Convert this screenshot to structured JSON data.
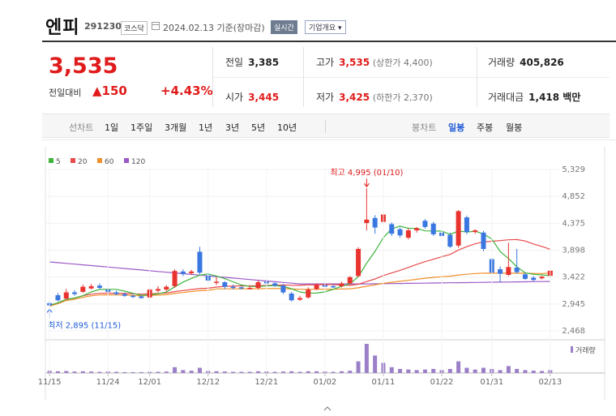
{
  "header": {
    "stock_name": "엔피",
    "stock_code": "291230",
    "market": "코스닥",
    "date": "2024.02.13",
    "basis": "기준(장마감)",
    "realtime_btn": "실시간",
    "company_btn": "기업개요 ▾"
  },
  "summary": {
    "current_price": "3,535",
    "compare_label": "전일대비",
    "compare_value": "▲150",
    "compare_pct": "+4.43%",
    "prev_close_label": "전일",
    "prev_close": "3,385",
    "high_label": "고가",
    "high": "3,535",
    "upper_limit": "(상한가 4,400)",
    "volume_label": "거래량",
    "volume": "405,826",
    "open_label": "시가",
    "open": "3,445",
    "low_label": "저가",
    "low": "3,425",
    "lower_limit": "(하한가 2,370)",
    "amount_label": "거래대금",
    "amount": "1,418 백만"
  },
  "tabs": {
    "line_chart": "선차트",
    "periods": [
      "1일",
      "1주일",
      "3개월",
      "1년",
      "3년",
      "5년",
      "10년"
    ],
    "candle_chart": "봉차트",
    "candle_periods": [
      "일봉",
      "주봉",
      "월봉"
    ]
  },
  "chart_data": {
    "type": "candlestick",
    "legend": [
      {
        "name": "5",
        "color": "#3db53d"
      },
      {
        "name": "20",
        "color": "#e84a4a"
      },
      {
        "name": "60",
        "color": "#f0902a"
      },
      {
        "name": "120",
        "color": "#9b59c6"
      }
    ],
    "y_ticks": [
      "5,329",
      "4,852",
      "4,375",
      "3,898",
      "3,422",
      "2,945",
      "2,468"
    ],
    "ylim": [
      2468,
      5329
    ],
    "x_ticks": [
      "11/15",
      "11/24",
      "12/01",
      "12/12",
      "12/21",
      "01/02",
      "01/11",
      "01/22",
      "01/31",
      "02/13"
    ],
    "max_annotation": "최고 4,995 (01/10)",
    "min_annotation": "최저 2,895 (11/15)",
    "volume_label": "거래량",
    "candles": [
      {
        "o": 2960,
        "c": 2920,
        "h": 3000,
        "l": 2895
      },
      {
        "o": 3100,
        "c": 3010,
        "h": 3140,
        "l": 2990
      },
      {
        "o": 3040,
        "c": 3150,
        "h": 3210,
        "l": 3020
      },
      {
        "o": 3150,
        "c": 3120,
        "h": 3190,
        "l": 3090
      },
      {
        "o": 3160,
        "c": 3250,
        "h": 3290,
        "l": 3140
      },
      {
        "o": 3220,
        "c": 3260,
        "h": 3300,
        "l": 3200
      },
      {
        "o": 3270,
        "c": 3230,
        "h": 3310,
        "l": 3200
      },
      {
        "o": 3200,
        "c": 3160,
        "h": 3230,
        "l": 3140
      },
      {
        "o": 3150,
        "c": 3120,
        "h": 3180,
        "l": 3100
      },
      {
        "o": 3120,
        "c": 3090,
        "h": 3150,
        "l": 3070
      },
      {
        "o": 3090,
        "c": 3070,
        "h": 3110,
        "l": 3050
      },
      {
        "o": 3080,
        "c": 3050,
        "h": 3100,
        "l": 3040
      },
      {
        "o": 3060,
        "c": 3200,
        "h": 3230,
        "l": 3040
      },
      {
        "o": 3180,
        "c": 3210,
        "h": 3260,
        "l": 3150
      },
      {
        "o": 3200,
        "c": 3250,
        "h": 3280,
        "l": 3170
      },
      {
        "o": 3260,
        "c": 3530,
        "h": 3560,
        "l": 3230
      },
      {
        "o": 3520,
        "c": 3480,
        "h": 3560,
        "l": 3440
      },
      {
        "o": 3490,
        "c": 3520,
        "h": 3550,
        "l": 3460
      },
      {
        "o": 3870,
        "c": 3500,
        "h": 3960,
        "l": 3470
      },
      {
        "o": 3450,
        "c": 3360,
        "h": 3490,
        "l": 3330
      },
      {
        "o": 3340,
        "c": 3340,
        "h": 3420,
        "l": 3280
      },
      {
        "o": 3330,
        "c": 3250,
        "h": 3350,
        "l": 3210
      },
      {
        "o": 3250,
        "c": 3240,
        "h": 3290,
        "l": 3200
      },
      {
        "o": 3240,
        "c": 3220,
        "h": 3260,
        "l": 3200
      },
      {
        "o": 3220,
        "c": 3230,
        "h": 3270,
        "l": 3200
      },
      {
        "o": 3230,
        "c": 3330,
        "h": 3360,
        "l": 3200
      },
      {
        "o": 3340,
        "c": 3310,
        "h": 3380,
        "l": 3290
      },
      {
        "o": 3310,
        "c": 3270,
        "h": 3330,
        "l": 3250
      },
      {
        "o": 3270,
        "c": 3150,
        "h": 3300,
        "l": 3120
      },
      {
        "o": 3130,
        "c": 3010,
        "h": 3160,
        "l": 2990
      },
      {
        "o": 3020,
        "c": 3050,
        "h": 3090,
        "l": 3000
      },
      {
        "o": 3060,
        "c": 3200,
        "h": 3240,
        "l": 3040
      },
      {
        "o": 3210,
        "c": 3280,
        "h": 3310,
        "l": 3190
      },
      {
        "o": 3280,
        "c": 3250,
        "h": 3320,
        "l": 3230
      },
      {
        "o": 3260,
        "c": 3250,
        "h": 3290,
        "l": 3230
      },
      {
        "o": 3260,
        "c": 3310,
        "h": 3340,
        "l": 3240
      },
      {
        "o": 3310,
        "c": 3420,
        "h": 3440,
        "l": 3290
      },
      {
        "o": 3440,
        "c": 3920,
        "h": 3950,
        "l": 3420
      },
      {
        "o": 4380,
        "c": 4440,
        "h": 4995,
        "l": 4250
      },
      {
        "o": 4470,
        "c": 4300,
        "h": 4520,
        "l": 4190
      },
      {
        "o": 4400,
        "c": 4530,
        "h": 4560,
        "l": 4360
      },
      {
        "o": 4360,
        "c": 4190,
        "h": 4390,
        "l": 4150
      },
      {
        "o": 4270,
        "c": 4160,
        "h": 4300,
        "l": 4120
      },
      {
        "o": 4120,
        "c": 4250,
        "h": 4290,
        "l": 4090
      },
      {
        "o": 4250,
        "c": 4290,
        "h": 4310,
        "l": 4210
      },
      {
        "o": 4420,
        "c": 4310,
        "h": 4450,
        "l": 4280
      },
      {
        "o": 4370,
        "c": 4180,
        "h": 4400,
        "l": 4150
      },
      {
        "o": 4210,
        "c": 4150,
        "h": 4240,
        "l": 4110
      },
      {
        "o": 4170,
        "c": 3960,
        "h": 4210,
        "l": 3940
      },
      {
        "o": 3980,
        "c": 4590,
        "h": 4610,
        "l": 3940
      },
      {
        "o": 4480,
        "c": 4220,
        "h": 4510,
        "l": 4180
      },
      {
        "o": 4220,
        "c": 4250,
        "h": 4270,
        "l": 4190
      },
      {
        "o": 4210,
        "c": 3920,
        "h": 4240,
        "l": 3880
      },
      {
        "o": 3740,
        "c": 3500,
        "h": 3760,
        "l": 3480
      },
      {
        "o": 3560,
        "c": 3480,
        "h": 3610,
        "l": 3330
      },
      {
        "o": 3460,
        "c": 3600,
        "h": 4030,
        "l": 3440
      },
      {
        "o": 3590,
        "c": 3510,
        "h": 3920,
        "l": 3480
      },
      {
        "o": 3470,
        "c": 3390,
        "h": 3500,
        "l": 3370
      },
      {
        "o": 3410,
        "c": 3370,
        "h": 3440,
        "l": 3350
      },
      {
        "o": 3400,
        "c": 3430,
        "h": 3440,
        "l": 3380
      },
      {
        "o": 3445,
        "c": 3535,
        "h": 3535,
        "l": 3425
      }
    ],
    "volume": [
      8,
      6,
      7,
      5,
      6,
      5,
      4,
      5,
      4,
      3,
      3,
      3,
      4,
      4,
      5,
      20,
      10,
      8,
      18,
      7,
      6,
      5,
      4,
      4,
      4,
      6,
      5,
      4,
      5,
      6,
      4,
      6,
      6,
      5,
      4,
      6,
      8,
      40,
      100,
      60,
      35,
      20,
      14,
      12,
      10,
      12,
      14,
      10,
      14,
      40,
      18,
      12,
      18,
      14,
      10,
      24,
      14,
      10,
      8,
      7,
      10
    ]
  }
}
